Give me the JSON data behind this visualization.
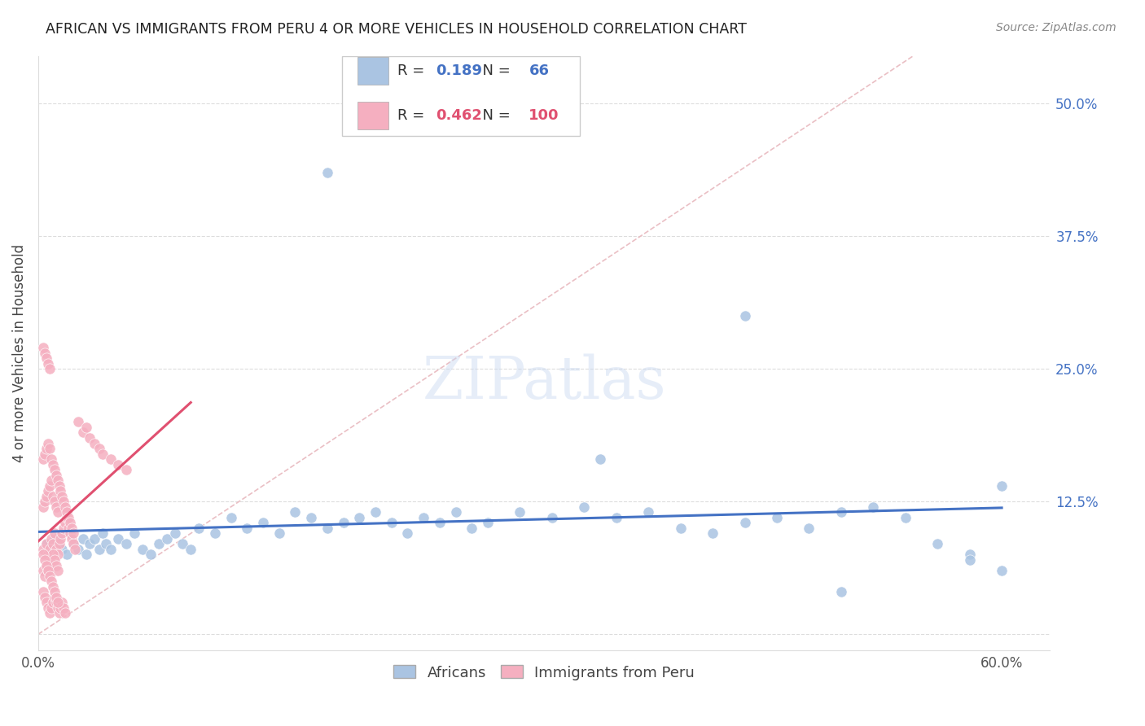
{
  "title": "AFRICAN VS IMMIGRANTS FROM PERU 4 OR MORE VEHICLES IN HOUSEHOLD CORRELATION CHART",
  "source": "Source: ZipAtlas.com",
  "ylabel": "4 or more Vehicles in Household",
  "xlim": [
    0.0,
    0.63
  ],
  "ylim": [
    -0.015,
    0.545
  ],
  "blue_R": 0.189,
  "blue_N": 66,
  "pink_R": 0.462,
  "pink_N": 100,
  "blue_color": "#aac4e2",
  "pink_color": "#f5afc0",
  "blue_line_color": "#4472c4",
  "pink_line_color": "#e05070",
  "diagonal_color": "#e8b8be",
  "background_color": "#ffffff",
  "grid_color": "#dddddd",
  "watermark": "ZIPatlas",
  "legend_labels": [
    "Africans",
    "Immigrants from Peru"
  ],
  "blue_scatter_x": [
    0.005,
    0.01,
    0.015,
    0.018,
    0.02,
    0.022,
    0.025,
    0.028,
    0.03,
    0.032,
    0.035,
    0.038,
    0.04,
    0.042,
    0.045,
    0.05,
    0.055,
    0.06,
    0.065,
    0.07,
    0.075,
    0.08,
    0.085,
    0.09,
    0.095,
    0.1,
    0.11,
    0.12,
    0.13,
    0.14,
    0.15,
    0.16,
    0.17,
    0.18,
    0.19,
    0.2,
    0.21,
    0.22,
    0.23,
    0.24,
    0.25,
    0.26,
    0.27,
    0.28,
    0.3,
    0.32,
    0.34,
    0.36,
    0.38,
    0.4,
    0.42,
    0.44,
    0.46,
    0.48,
    0.5,
    0.52,
    0.54,
    0.56,
    0.58,
    0.6,
    0.18,
    0.44,
    0.58,
    0.6,
    0.5,
    0.35
  ],
  "blue_scatter_y": [
    0.085,
    0.09,
    0.08,
    0.075,
    0.095,
    0.085,
    0.08,
    0.09,
    0.075,
    0.085,
    0.09,
    0.08,
    0.095,
    0.085,
    0.08,
    0.09,
    0.085,
    0.095,
    0.08,
    0.075,
    0.085,
    0.09,
    0.095,
    0.085,
    0.08,
    0.1,
    0.095,
    0.11,
    0.1,
    0.105,
    0.095,
    0.115,
    0.11,
    0.1,
    0.105,
    0.11,
    0.115,
    0.105,
    0.095,
    0.11,
    0.105,
    0.115,
    0.1,
    0.105,
    0.115,
    0.11,
    0.12,
    0.11,
    0.115,
    0.1,
    0.095,
    0.105,
    0.11,
    0.1,
    0.115,
    0.12,
    0.11,
    0.085,
    0.075,
    0.14,
    0.435,
    0.3,
    0.07,
    0.06,
    0.04,
    0.165
  ],
  "pink_scatter_x": [
    0.003,
    0.005,
    0.006,
    0.007,
    0.008,
    0.009,
    0.01,
    0.011,
    0.012,
    0.013,
    0.014,
    0.015,
    0.016,
    0.017,
    0.018,
    0.019,
    0.02,
    0.021,
    0.022,
    0.023,
    0.003,
    0.004,
    0.005,
    0.006,
    0.007,
    0.008,
    0.009,
    0.01,
    0.011,
    0.012,
    0.003,
    0.004,
    0.005,
    0.006,
    0.007,
    0.008,
    0.009,
    0.01,
    0.011,
    0.012,
    0.003,
    0.004,
    0.005,
    0.006,
    0.007,
    0.008,
    0.009,
    0.01,
    0.011,
    0.012,
    0.013,
    0.014,
    0.015,
    0.016,
    0.017,
    0.018,
    0.019,
    0.02,
    0.021,
    0.022,
    0.025,
    0.028,
    0.03,
    0.032,
    0.035,
    0.038,
    0.04,
    0.045,
    0.05,
    0.055,
    0.003,
    0.004,
    0.005,
    0.006,
    0.007,
    0.003,
    0.004,
    0.005,
    0.006,
    0.007,
    0.008,
    0.009,
    0.01,
    0.011,
    0.012,
    0.013,
    0.014,
    0.015,
    0.016,
    0.017,
    0.003,
    0.004,
    0.005,
    0.006,
    0.007,
    0.008,
    0.009,
    0.01,
    0.011,
    0.012
  ],
  "pink_scatter_y": [
    0.08,
    0.085,
    0.075,
    0.08,
    0.09,
    0.085,
    0.095,
    0.08,
    0.075,
    0.085,
    0.09,
    0.095,
    0.1,
    0.105,
    0.11,
    0.1,
    0.095,
    0.09,
    0.085,
    0.08,
    0.12,
    0.125,
    0.13,
    0.135,
    0.14,
    0.145,
    0.13,
    0.125,
    0.12,
    0.115,
    0.06,
    0.055,
    0.065,
    0.06,
    0.07,
    0.065,
    0.075,
    0.07,
    0.065,
    0.06,
    0.165,
    0.17,
    0.175,
    0.18,
    0.175,
    0.165,
    0.16,
    0.155,
    0.15,
    0.145,
    0.14,
    0.135,
    0.13,
    0.125,
    0.12,
    0.115,
    0.11,
    0.105,
    0.1,
    0.095,
    0.2,
    0.19,
    0.195,
    0.185,
    0.18,
    0.175,
    0.17,
    0.165,
    0.16,
    0.155,
    0.27,
    0.265,
    0.26,
    0.255,
    0.25,
    0.04,
    0.035,
    0.03,
    0.025,
    0.02,
    0.025,
    0.03,
    0.035,
    0.03,
    0.025,
    0.02,
    0.025,
    0.03,
    0.025,
    0.02,
    0.075,
    0.07,
    0.065,
    0.06,
    0.055,
    0.05,
    0.045,
    0.04,
    0.035,
    0.03
  ]
}
